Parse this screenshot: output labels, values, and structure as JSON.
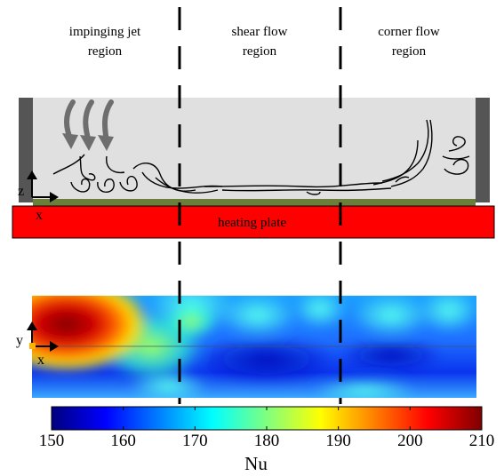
{
  "regions": [
    {
      "label": "impinging jet\nregion"
    },
    {
      "label": "shear flow\nregion"
    },
    {
      "label": "corner flow\nregion"
    }
  ],
  "heating_plate": {
    "label": "heating plate",
    "color": "#ff0000"
  },
  "side_axes": {
    "vertical": "z",
    "horizontal": "x"
  },
  "map_axes": {
    "vertical": "y",
    "horizontal": "x"
  },
  "colorbar": {
    "label": "Nu",
    "min": 150,
    "max": 210,
    "ticks": [
      "150",
      "160",
      "170",
      "180",
      "190",
      "200",
      "210"
    ],
    "colormap": "jet"
  },
  "colors": {
    "chamber_fill": "#e0e0e0",
    "walls": "#555555",
    "floor": "#6b7f3a",
    "jet_arrows": "#6e6e6e"
  }
}
